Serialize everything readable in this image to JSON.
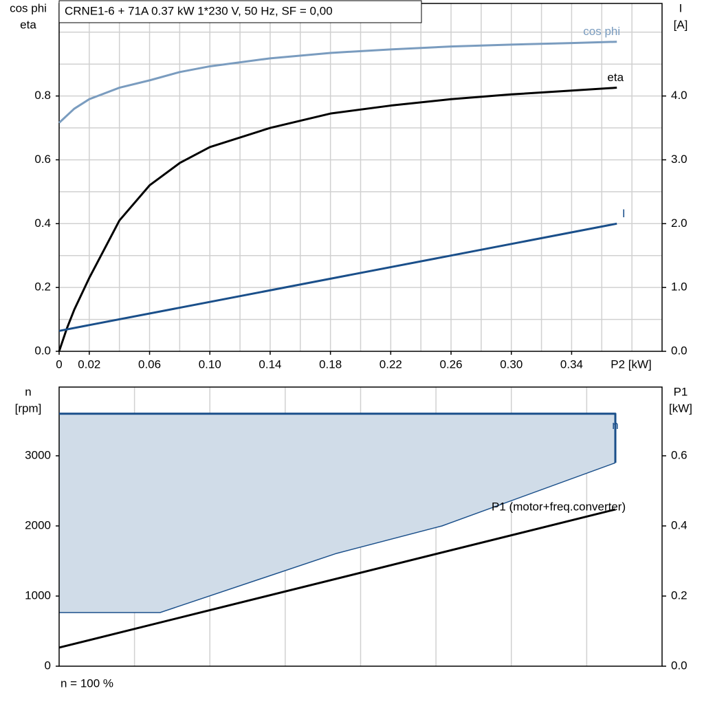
{
  "chart_data": [
    {
      "type": "line",
      "title": "CRNE1-6 + 71A   0.37 kW   1*230 V, 50 Hz, SF = 0,00",
      "ylabel": [
        "cos phi",
        "eta"
      ],
      "y2label": [
        "I",
        "[A]"
      ],
      "xlabel": "P2 [kW]",
      "xlim": [
        0,
        0.4
      ],
      "xticks": [
        0,
        0.02,
        0.06,
        {
          "value": 0.1,
          "label": "0.10"
        },
        0.14,
        0.18,
        0.22,
        0.26,
        {
          "value": 0.3,
          "label": "0.30"
        },
        0.34
      ],
      "xgrid": [
        0.02,
        0.04,
        0.06,
        0.08,
        0.1,
        0.12,
        0.14,
        0.16,
        0.18,
        0.2,
        0.22,
        0.24,
        0.26,
        0.28,
        0.3,
        0.32,
        0.34,
        0.36,
        0.38
      ],
      "ylim": [
        0,
        1.09
      ],
      "yticks": [
        {
          "value": 0,
          "label": "0.0"
        },
        0.2,
        0.4,
        0.6,
        0.8
      ],
      "ygrid": [
        0.1,
        0.2,
        0.3,
        0.4,
        0.5,
        0.6,
        0.7,
        0.8,
        0.9,
        1.0
      ],
      "y2lim": [
        0,
        5.45
      ],
      "y2ticks": [
        {
          "value": 0,
          "label": "0.0"
        },
        {
          "value": 1,
          "label": "1.0"
        },
        {
          "value": 2,
          "label": "2.0"
        },
        {
          "value": 3,
          "label": "3.0"
        },
        {
          "value": 4,
          "label": "4.0"
        }
      ],
      "series": [
        {
          "name": "cos phi",
          "color": "#7a9cbf",
          "x": [
            0,
            0.01,
            0.02,
            0.04,
            0.06,
            0.08,
            0.1,
            0.14,
            0.18,
            0.22,
            0.26,
            0.3,
            0.34,
            0.37
          ],
          "values": [
            0.716,
            0.76,
            0.79,
            0.826,
            0.849,
            0.875,
            0.893,
            0.918,
            0.935,
            0.946,
            0.955,
            0.961,
            0.966,
            0.97
          ]
        },
        {
          "name": "eta",
          "color": "#000000",
          "x": [
            0,
            0.005,
            0.01,
            0.02,
            0.04,
            0.06,
            0.08,
            0.1,
            0.14,
            0.18,
            0.22,
            0.26,
            0.3,
            0.34,
            0.37
          ],
          "values": [
            0,
            0.07,
            0.13,
            0.23,
            0.41,
            0.52,
            0.59,
            0.64,
            0.7,
            0.745,
            0.77,
            0.79,
            0.805,
            0.817,
            0.826
          ]
        },
        {
          "name": "I",
          "color": "#1a4f8a",
          "axis": "y2",
          "x": [
            0,
            0.37
          ],
          "values": [
            0.32,
            2.0
          ]
        }
      ]
    },
    {
      "type": "line",
      "ylabel": [
        "n",
        "[rpm]"
      ],
      "y2label": [
        "P1",
        "[kW]"
      ],
      "note": "n = 100 %",
      "xlim": [
        0,
        0.4
      ],
      "xgrid": [
        0.05,
        0.1,
        0.15,
        0.2,
        0.25,
        0.3,
        0.35
      ],
      "ylim": [
        0,
        3980
      ],
      "yticks": [
        0,
        1000,
        2000,
        3000
      ],
      "y2lim": [
        0,
        0.796
      ],
      "y2ticks": [
        {
          "value": 0,
          "label": "0.0"
        },
        0.2,
        0.4,
        0.6
      ],
      "area": {
        "color": "#d0dce8",
        "edge": "#1a4f8a",
        "x": [
          0,
          0.067,
          0.184,
          0.254,
          0.369
        ],
        "upper": [
          3600,
          3600,
          3600,
          3600,
          3600
        ],
        "lower": [
          765,
          765,
          1608,
          2000,
          2900
        ]
      },
      "series": [
        {
          "name": "n",
          "color": "#1a4f8a",
          "x": [
            0,
            0.369,
            0.369
          ],
          "values": [
            3600,
            3600,
            2900
          ]
        },
        {
          "name": "P1 (motor+freq.converter)",
          "color": "#000000",
          "axis": "y2",
          "x": [
            0,
            0.369
          ],
          "values": [
            0.053,
            0.447
          ]
        }
      ]
    }
  ]
}
